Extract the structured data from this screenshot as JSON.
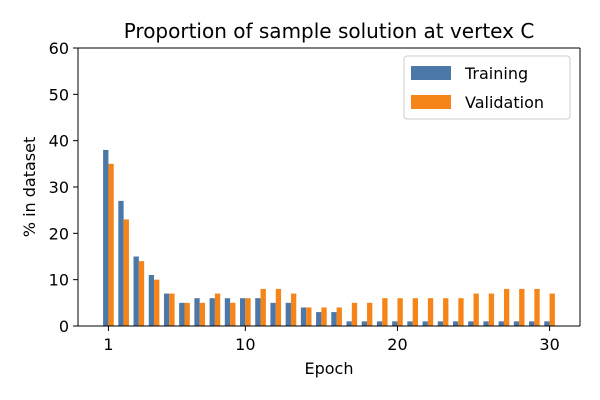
{
  "chart_data": {
    "type": "bar",
    "title": "Proportion of sample solution at vertex C",
    "xlabel": "Epoch",
    "ylabel": "% in dataset",
    "ylim": [
      0,
      60
    ],
    "yticks": [
      0,
      10,
      20,
      30,
      40,
      50,
      60
    ],
    "xticks": [
      1,
      10,
      20,
      30
    ],
    "xlim": [
      -1,
      32
    ],
    "grid": false,
    "legend_position": "top-right",
    "x": [
      1,
      2,
      3,
      4,
      5,
      6,
      7,
      8,
      9,
      10,
      11,
      12,
      13,
      14,
      15,
      16,
      17,
      18,
      19,
      20,
      21,
      22,
      23,
      24,
      25,
      26,
      27,
      28,
      29,
      30
    ],
    "series": [
      {
        "name": "Training",
        "color": "#4c78a8",
        "values": [
          38,
          27,
          15,
          11,
          7,
          5,
          6,
          6,
          6,
          6,
          6,
          5,
          5,
          4,
          3,
          3,
          1,
          1,
          1,
          1,
          1,
          1,
          1,
          1,
          1,
          1,
          1,
          1,
          1,
          1
        ]
      },
      {
        "name": "Validation",
        "color": "#f58518",
        "values": [
          35,
          23,
          14,
          10,
          7,
          5,
          5,
          7,
          5,
          6,
          8,
          8,
          7,
          4,
          4,
          4,
          5,
          5,
          6,
          6,
          6,
          6,
          6,
          6,
          7,
          7,
          8,
          8,
          8,
          7
        ]
      }
    ]
  }
}
